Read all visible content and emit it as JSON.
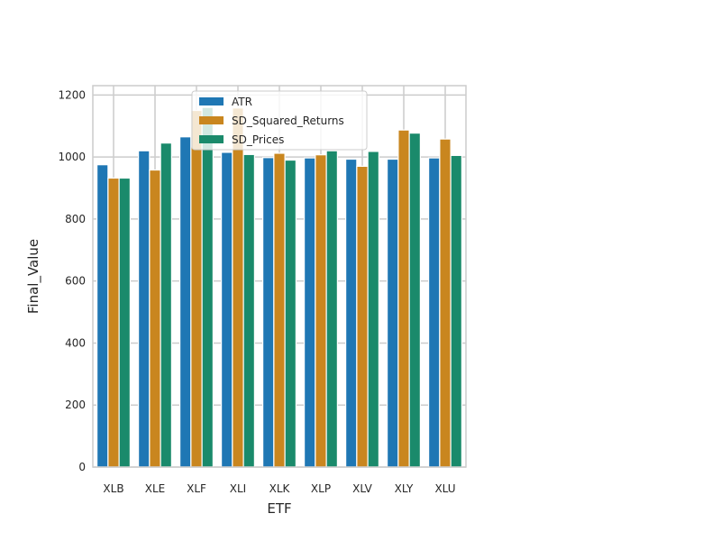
{
  "chart_data": {
    "type": "bar",
    "title": "",
    "xlabel": "ETF",
    "ylabel": "Final_Value",
    "categories": [
      "XLB",
      "XLE",
      "XLF",
      "XLI",
      "XLK",
      "XLP",
      "XLV",
      "XLY",
      "XLU"
    ],
    "series": [
      {
        "name": "ATR",
        "color": "#1f77b4",
        "values": [
          975,
          1020,
          1065,
          1015,
          998,
          997,
          993,
          993,
          997
        ]
      },
      {
        "name": "SD_Squared_Returns",
        "color": "#c9861f",
        "values": [
          932,
          958,
          1150,
          1158,
          1012,
          1007,
          970,
          1087,
          1058
        ]
      },
      {
        "name": "SD_Prices",
        "color": "#1a8a6b",
        "values": [
          932,
          1045,
          1160,
          1008,
          990,
          1020,
          1018,
          1077,
          1005
        ]
      }
    ],
    "yticks": [
      0,
      200,
      400,
      600,
      800,
      1000,
      1200
    ],
    "ylim": [
      0,
      1230
    ],
    "grid": true,
    "legend": "top-center"
  }
}
